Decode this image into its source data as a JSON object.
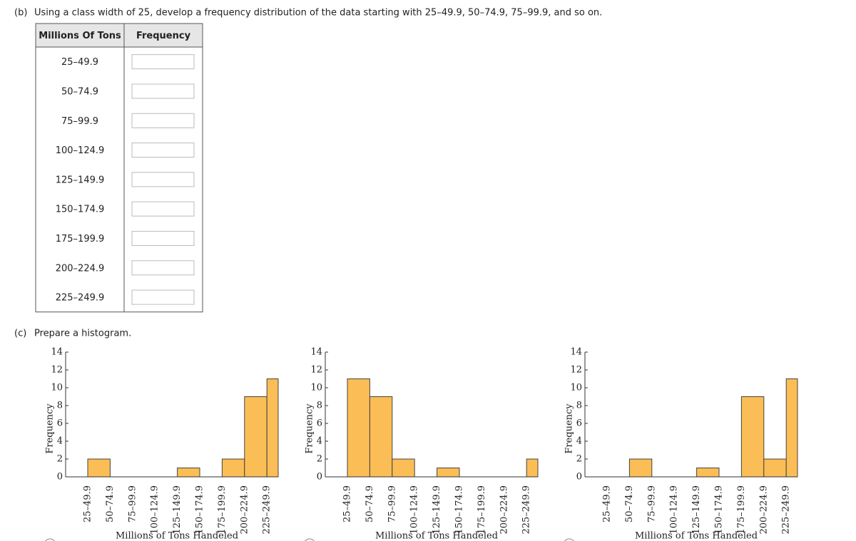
{
  "part_b": {
    "label": "(b)",
    "text": "Using a class width of 25, develop a frequency distribution of the data starting with 25–49.9, 50–74.9, 75–99.9, and so on."
  },
  "table": {
    "headers": [
      "Millions Of Tons",
      "Frequency"
    ],
    "rows": [
      "25–49.9",
      "50–74.9",
      "75–99.9",
      "100–124.9",
      "125–149.9",
      "150–174.9",
      "175–199.9",
      "200–224.9",
      "225–249.9"
    ]
  },
  "part_c": {
    "label": "(c)",
    "text": "Prepare a histogram."
  },
  "chart_data": [
    {
      "type": "bar",
      "categories": [
        "25–49.9",
        "50–74.9",
        "75–99.9",
        "100–124.9",
        "125–149.9",
        "150–174.9",
        "175–199.9",
        "200–224.9",
        "225–249.9"
      ],
      "values": [
        2,
        0,
        0,
        0,
        1,
        0,
        2,
        9,
        11
      ],
      "color": "#fbbd55",
      "ylim": [
        0,
        14
      ],
      "yticks": [
        0,
        2,
        4,
        6,
        8,
        10,
        12,
        14
      ],
      "ylabel": "Frequency",
      "xlabel": "Millions of Tons Handeled"
    },
    {
      "type": "bar",
      "categories": [
        "25–49.9",
        "50–74.9",
        "75–99.9",
        "100–124.9",
        "125–149.9",
        "150–174.9",
        "175–199.9",
        "200–224.9",
        "225–249.9"
      ],
      "values": [
        11,
        9,
        2,
        0,
        1,
        0,
        0,
        0,
        2
      ],
      "color": "#fbbd55",
      "ylim": [
        0,
        14
      ],
      "yticks": [
        0,
        2,
        4,
        6,
        8,
        10,
        12,
        14
      ],
      "ylabel": "Frequency",
      "xlabel": "Millions of Tons Handeled"
    },
    {
      "type": "bar",
      "categories": [
        "25–49.9",
        "50–74.9",
        "75–99.9",
        "100–124.9",
        "125–149.9",
        "150–174.9",
        "175–199.9",
        "200–224.9",
        "225–249.9"
      ],
      "values": [
        0,
        2,
        0,
        0,
        1,
        0,
        9,
        2,
        11
      ],
      "color": "#fbbd55",
      "ylim": [
        0,
        14
      ],
      "yticks": [
        0,
        2,
        4,
        6,
        8,
        10,
        12,
        14
      ],
      "ylabel": "Frequency",
      "xlabel": "Millions of Tons Handeled"
    }
  ]
}
